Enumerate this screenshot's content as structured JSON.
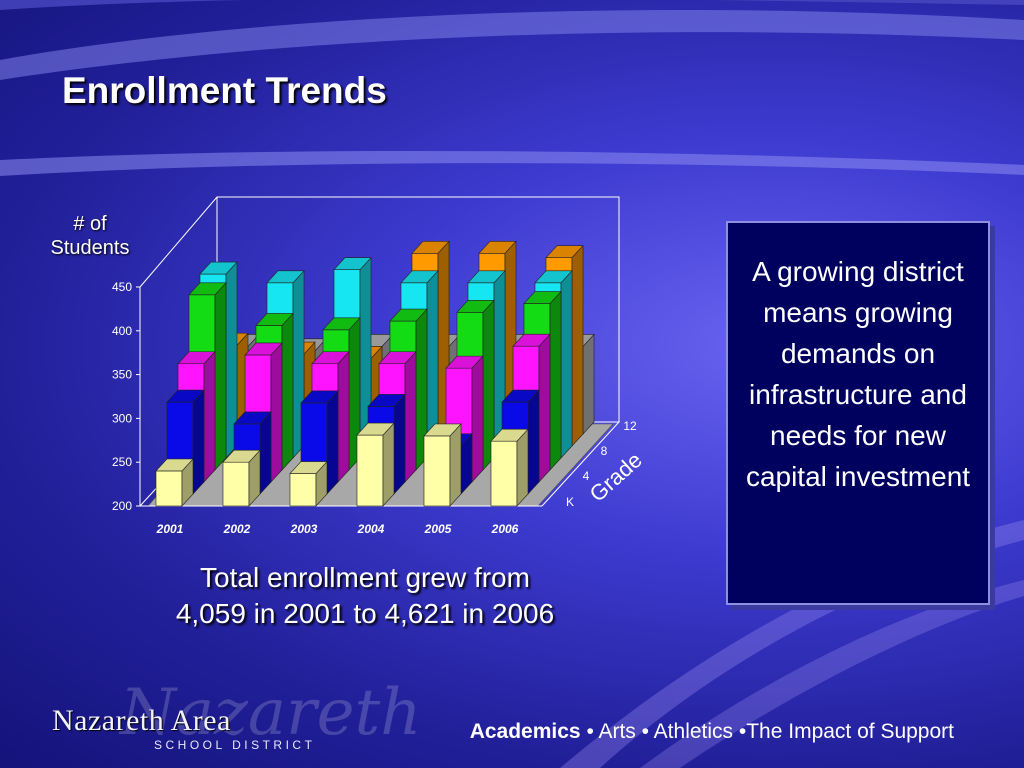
{
  "slide": {
    "title": "Enrollment Trends",
    "ylabel_line1": "# of",
    "ylabel_line2": "Students",
    "caption_line1": "Total enrollment grew from",
    "caption_line2": "4,059 in 2001 to 4,621 in 2006",
    "callout": "A growing district means growing demands on infrastructure and needs for new capital investment",
    "logo_main": "Nazareth Area",
    "logo_sub": "SCHOOL DISTRICT",
    "logo_script": "Nazareth",
    "tagline_bold": "Academics",
    "tagline_rest": " • Arts • Athletics •The Impact of Support"
  },
  "chart_data": {
    "type": "bar",
    "subtype": "3d-column",
    "categories": [
      "2001",
      "2002",
      "2003",
      "2004",
      "2005",
      "2006"
    ],
    "depth_axis_label": "Grade",
    "depth_tick_labels": [
      "K",
      "4",
      "8",
      "12"
    ],
    "ylim": [
      200,
      450
    ],
    "yticks": [
      200,
      250,
      300,
      350,
      400,
      450
    ],
    "grid": false,
    "series": [
      {
        "color": "#ffffa8",
        "values": [
          240,
          250,
          237,
          281,
          280,
          274
        ]
      },
      {
        "color": "#0a0ae8",
        "values": [
          305,
          280,
          304,
          300,
          255,
          305
        ]
      },
      {
        "color": "#ff14ff",
        "values": [
          335,
          345,
          335,
          335,
          330,
          355
        ]
      },
      {
        "color": "#14dc14",
        "values": [
          400,
          365,
          360,
          370,
          380,
          390
        ]
      },
      {
        "color": "#16e6f2",
        "values": [
          410,
          400,
          415,
          400,
          400,
          400
        ]
      },
      {
        "color": "#ff9a00",
        "values": [
          315,
          305,
          300,
          420,
          420,
          415
        ]
      },
      {
        "color": "#b4b4b4",
        "values": [
          300,
          295,
          300,
          300,
          300,
          300
        ]
      }
    ]
  }
}
